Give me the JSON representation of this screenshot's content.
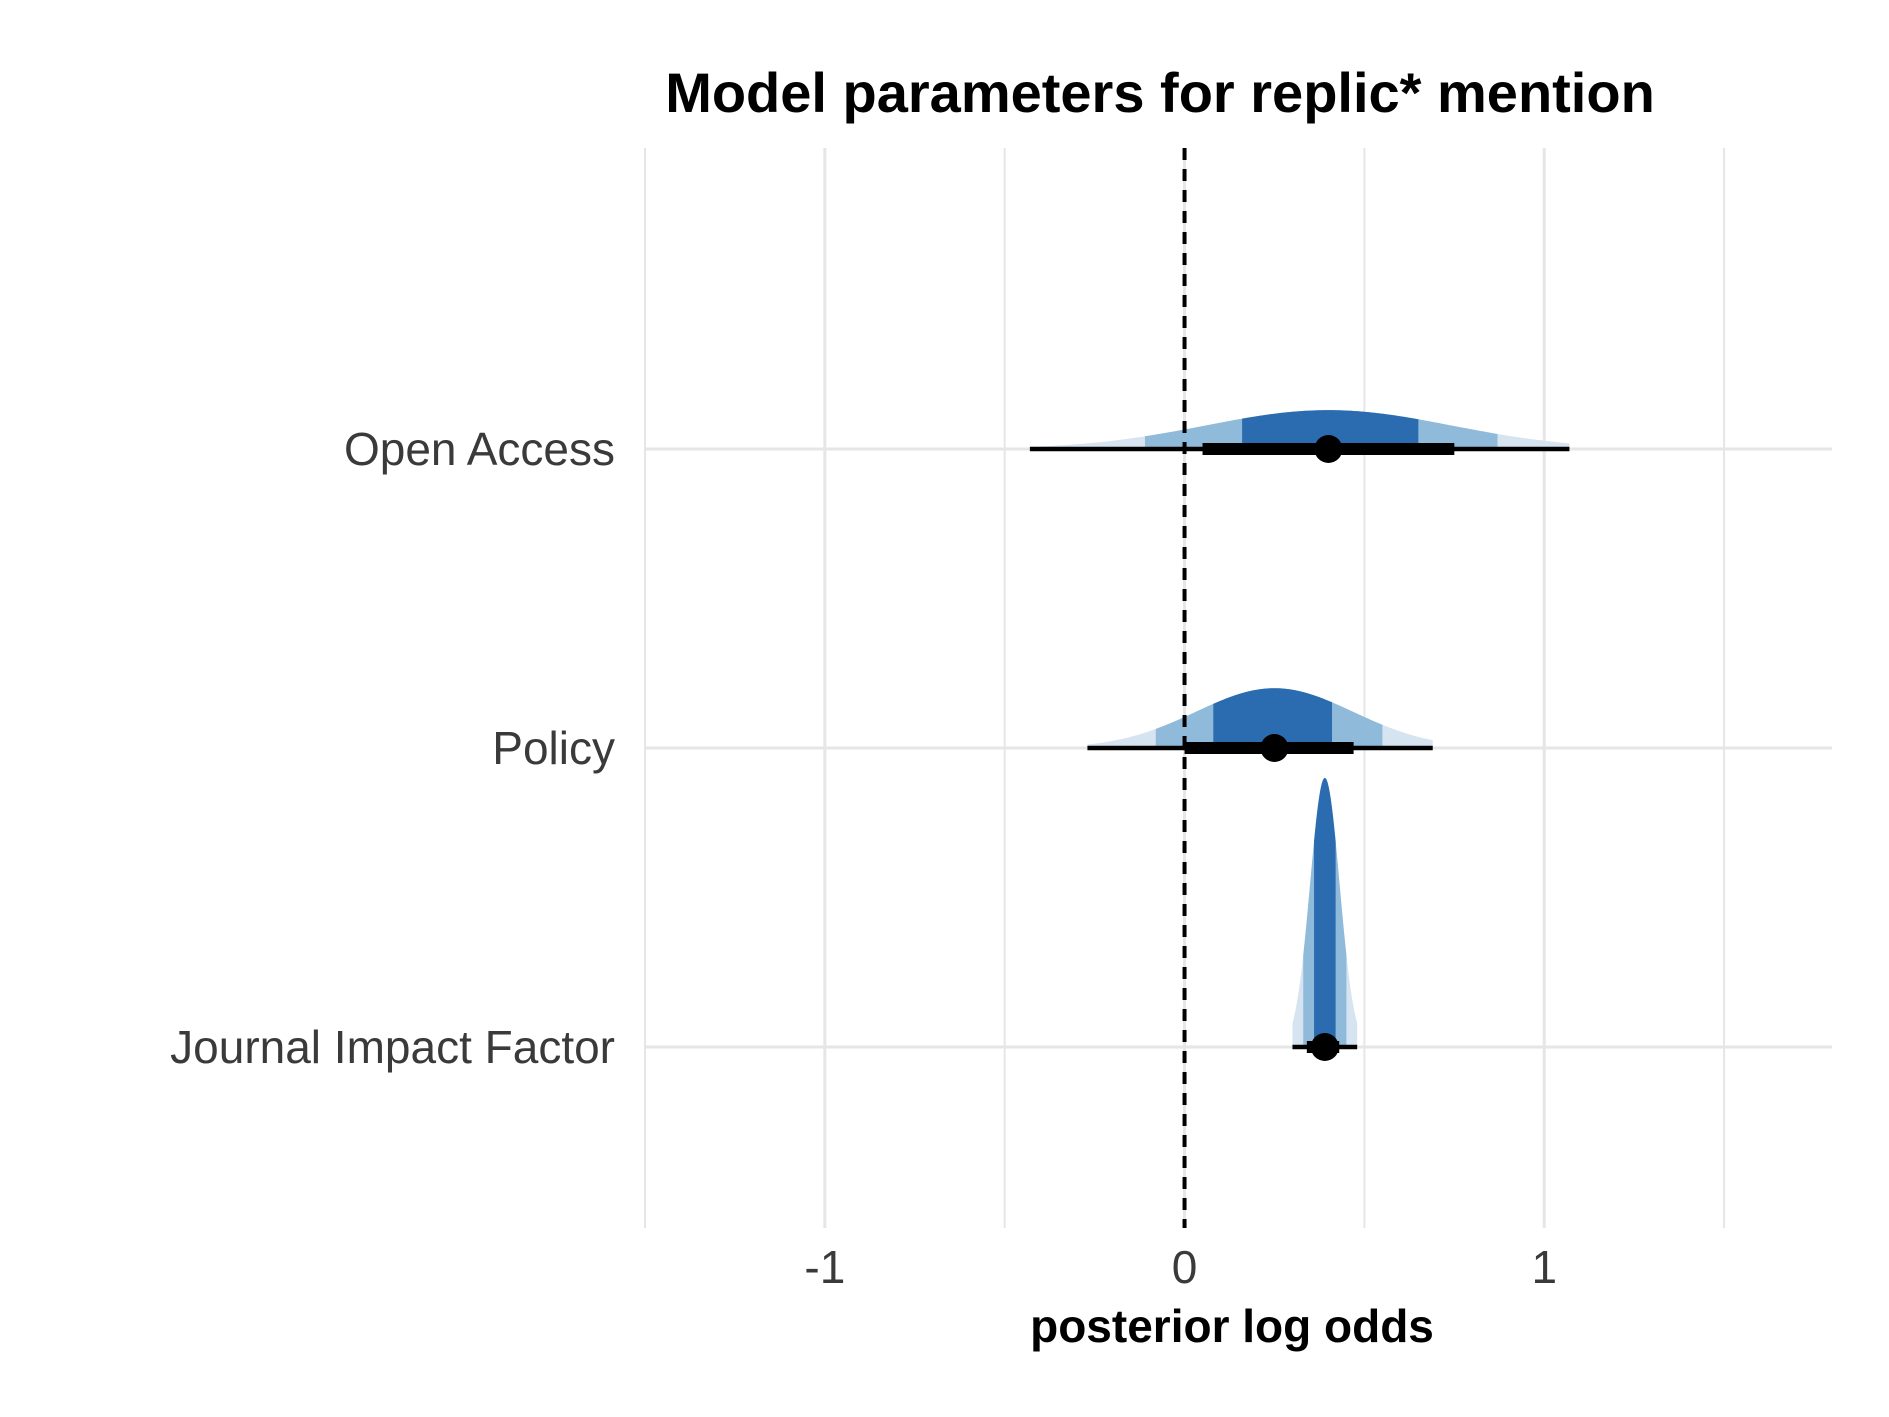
{
  "chart_data": {
    "type": "interval-density",
    "title": "Model parameters for replic* mention",
    "xlabel": "posterior log odds",
    "ylabel": "",
    "xlim": [
      -1.5,
      1.8
    ],
    "xticks": [
      -1,
      0,
      1
    ],
    "xtick_labels": [
      "-1",
      "0",
      "1"
    ],
    "reference_line": {
      "x": 0,
      "style": "dashed"
    },
    "grid": true,
    "colors": {
      "inner": "#2b6cb0",
      "middle": "#8fbad9",
      "outer": "#d6e4f2",
      "point": "#000000",
      "grid": "#e6e6e6"
    },
    "categories": [
      "Open Access",
      "Policy",
      "Journal Impact Factor"
    ],
    "series": [
      {
        "label": "Open Access",
        "median": 0.4,
        "interval_66": [
          0.05,
          0.75
        ],
        "interval_95": [
          -0.43,
          1.07
        ],
        "density_extent": [
          -0.43,
          1.07
        ],
        "inner_band": [
          0.16,
          0.65
        ],
        "middle_band": [
          -0.11,
          0.87
        ],
        "peak_height": 0.13
      },
      {
        "label": "Policy",
        "median": 0.25,
        "interval_66": [
          0.0,
          0.47
        ],
        "interval_95": [
          -0.27,
          0.69
        ],
        "density_extent": [
          -0.27,
          0.69
        ],
        "inner_band": [
          0.08,
          0.41
        ],
        "middle_band": [
          -0.08,
          0.55
        ],
        "peak_height": 0.2
      },
      {
        "label": "Journal Impact Factor",
        "median": 0.39,
        "interval_66": [
          0.34,
          0.43
        ],
        "interval_95": [
          0.3,
          0.48
        ],
        "density_extent": [
          0.3,
          0.48
        ],
        "inner_band": [
          0.36,
          0.42
        ],
        "middle_band": [
          0.33,
          0.45
        ],
        "peak_height": 0.9
      }
    ]
  }
}
